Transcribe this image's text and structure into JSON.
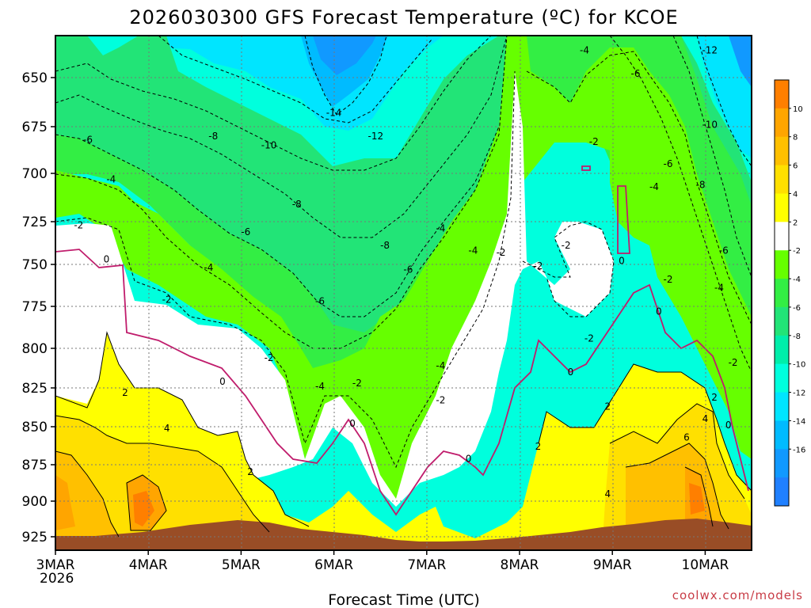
{
  "chart_data": {
    "type": "heatmap",
    "title": "2026030300 GFS Forecast Temperature (ºC) for KCOE",
    "xlabel": "Forecast Time (UTC)",
    "ylabel": "",
    "x_ticks": [
      "3MAR",
      "4MAR",
      "5MAR",
      "6MAR",
      "7MAR",
      "8MAR",
      "9MAR",
      "10MAR"
    ],
    "x_sub_label": "2026",
    "y_ticks": [
      650,
      675,
      700,
      725,
      750,
      775,
      800,
      825,
      850,
      875,
      900,
      925
    ],
    "y_range_hpa": [
      940,
      620
    ],
    "y_inverted": true,
    "x_range_days": [
      3,
      10.5
    ],
    "grid": "dotted",
    "colorbar": {
      "labels": [
        10,
        8,
        6,
        4,
        2,
        -2,
        -4,
        -6,
        -8,
        -10,
        -12,
        -14,
        -16
      ],
      "colors": [
        "#ff7f00",
        "#ffa500",
        "#ffc000",
        "#ffe000",
        "#ffff00",
        "#ffffff",
        "#66ff00",
        "#33ee44",
        "#22e477",
        "#00eeaa",
        "#00ffdd",
        "#00e5ff",
        "#00bbff",
        "#1199ff",
        "#2080ff"
      ]
    },
    "contour_labels": [
      {
        "text": "-2",
        "t": 3.25,
        "p": 727
      },
      {
        "text": "-4",
        "t": 3.6,
        "p": 703
      },
      {
        "text": "-6",
        "t": 3.35,
        "p": 682
      },
      {
        "text": "0",
        "t": 3.55,
        "p": 747
      },
      {
        "text": "-4",
        "t": 4.65,
        "p": 752
      },
      {
        "text": "-2",
        "t": 4.2,
        "p": 771
      },
      {
        "text": "2",
        "t": 3.75,
        "p": 828
      },
      {
        "text": "4",
        "t": 4.2,
        "p": 851
      },
      {
        "text": "-8",
        "t": 4.7,
        "p": 680
      },
      {
        "text": "-6",
        "t": 5.05,
        "p": 731
      },
      {
        "text": "-10",
        "t": 5.3,
        "p": 685
      },
      {
        "text": "0",
        "t": 4.8,
        "p": 821
      },
      {
        "text": "-2",
        "t": 5.3,
        "p": 806
      },
      {
        "text": "2",
        "t": 5.1,
        "p": 880
      },
      {
        "text": "-8",
        "t": 5.6,
        "p": 716
      },
      {
        "text": "-6",
        "t": 5.85,
        "p": 772
      },
      {
        "text": "-4",
        "t": 5.85,
        "p": 824
      },
      {
        "text": "-14",
        "t": 6.0,
        "p": 668
      },
      {
        "text": "-12",
        "t": 6.45,
        "p": 680
      },
      {
        "text": "-8",
        "t": 6.55,
        "p": 739
      },
      {
        "text": "-2",
        "t": 6.25,
        "p": 822
      },
      {
        "text": "0",
        "t": 6.2,
        "p": 848
      },
      {
        "text": "-6",
        "t": 6.8,
        "p": 753
      },
      {
        "text": "-4",
        "t": 7.15,
        "p": 729
      },
      {
        "text": "-2",
        "t": 7.15,
        "p": 833
      },
      {
        "text": "-4",
        "t": 7.15,
        "p": 811
      },
      {
        "text": "-4",
        "t": 7.5,
        "p": 742
      },
      {
        "text": "-2",
        "t": 7.8,
        "p": 743
      },
      {
        "text": "0",
        "t": 7.45,
        "p": 871
      },
      {
        "text": "-2",
        "t": 8.2,
        "p": 751
      },
      {
        "text": "-2",
        "t": 8.5,
        "p": 739
      },
      {
        "text": "-2",
        "t": 8.8,
        "p": 683
      },
      {
        "text": "-2",
        "t": 8.75,
        "p": 794
      },
      {
        "text": "0",
        "t": 8.55,
        "p": 815
      },
      {
        "text": "2",
        "t": 8.2,
        "p": 863
      },
      {
        "text": "-4",
        "t": 8.7,
        "p": 636
      },
      {
        "text": "0",
        "t": 9.1,
        "p": 748
      },
      {
        "text": "-4",
        "t": 9.45,
        "p": 707
      },
      {
        "text": "-6",
        "t": 9.25,
        "p": 648
      },
      {
        "text": "-6",
        "t": 9.6,
        "p": 695
      },
      {
        "text": "-2",
        "t": 9.6,
        "p": 759
      },
      {
        "text": "0",
        "t": 9.5,
        "p": 778
      },
      {
        "text": "2",
        "t": 8.95,
        "p": 837
      },
      {
        "text": "4",
        "t": 8.95,
        "p": 895
      },
      {
        "text": "6",
        "t": 9.8,
        "p": 857
      },
      {
        "text": "-12",
        "t": 10.05,
        "p": 636
      },
      {
        "text": "-10",
        "t": 10.05,
        "p": 674
      },
      {
        "text": "-8",
        "t": 9.95,
        "p": 706
      },
      {
        "text": "-6",
        "t": 10.2,
        "p": 742
      },
      {
        "text": "-4",
        "t": 10.15,
        "p": 764
      },
      {
        "text": "-2",
        "t": 10.3,
        "p": 809
      },
      {
        "text": "2",
        "t": 10.1,
        "p": 831
      },
      {
        "text": "4",
        "t": 10.0,
        "p": 845
      },
      {
        "text": "0",
        "t": 10.25,
        "p": 849
      }
    ]
  },
  "credit": "coolwx.com/models",
  "colors": {
    "terrain": "#994d26",
    "freezing_line": "#c01c6c",
    "frame": "#000000"
  }
}
